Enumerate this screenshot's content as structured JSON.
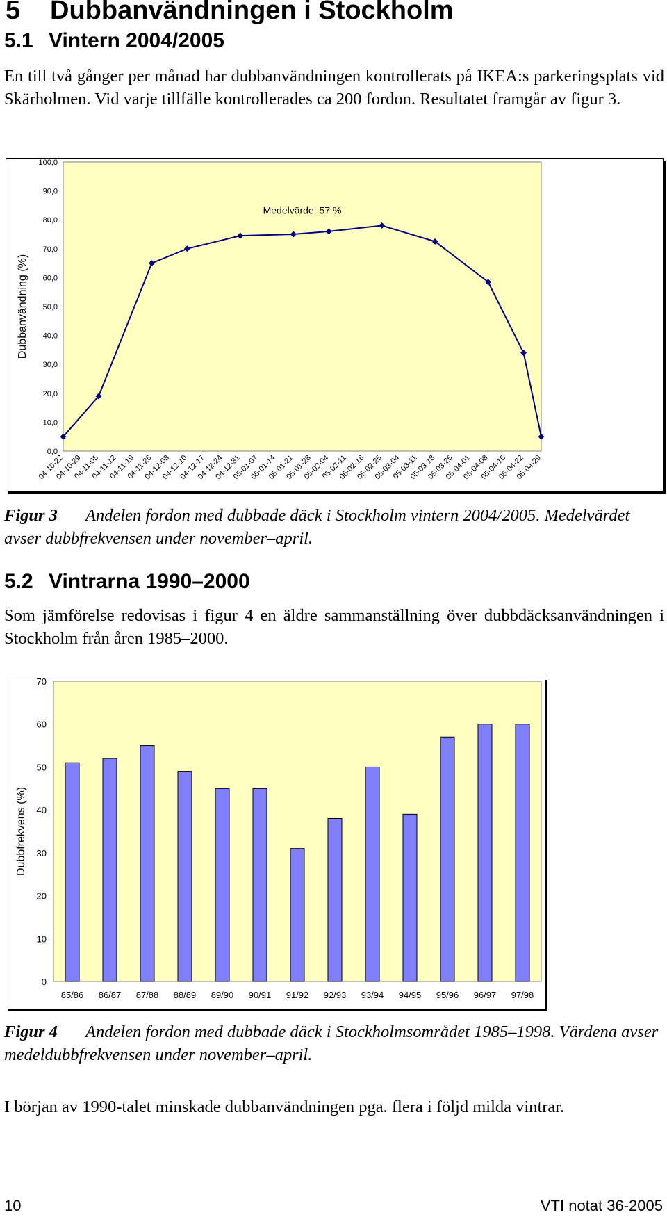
{
  "section": {
    "number": "5",
    "title": "Dubbanvändningen i Stockholm"
  },
  "subsection1": {
    "number": "5.1",
    "title": "Vintern 2004/2005"
  },
  "para1": "En till två gånger per månad har dubbanvändningen kontrollerats på IKEA:s parkeringsplats vid Skärholmen. Vid varje tillfälle kontrollerades ca 200 fordon. Resultatet framgår av figur 3.",
  "figure3": {
    "label": "Figur 3",
    "caption": "Andelen fordon med dubbade däck i Stockholm vintern 2004/2005. Medelvärdet avser dubbfrekvensen under november–april."
  },
  "subsection2": {
    "number": "5.2",
    "title": "Vintrarna 1990–2000"
  },
  "para2": "Som jämförelse redovisas i figur 4 en äldre sammanställning över dubbdäcksanvändningen i Stockholm från åren 1985–2000.",
  "figure4": {
    "label": "Figur 4",
    "caption": "Andelen fordon med dubbade däck i Stockholmsområdet 1985–1998. Värdena avser medeldubbfrekvensen under november–april."
  },
  "para3": "I början av 1990-talet minskade dubbanvändningen pga. flera i följd milda vintrar.",
  "footer": {
    "page": "10",
    "report": "VTI notat 36-2005"
  },
  "chart_data": [
    {
      "type": "line",
      "title": "",
      "annotation": "Medelvärde: 57 %",
      "xlabel": "",
      "ylabel": "Dubbanvändning (%)",
      "ylim": [
        0,
        100
      ],
      "yticks": [
        "0,0",
        "10,0",
        "20,0",
        "30,0",
        "40,0",
        "50,0",
        "60,0",
        "70,0",
        "80,0",
        "90,0",
        "100,0"
      ],
      "categories": [
        "04-10-22",
        "04-10-29",
        "04-11-05",
        "04-11-12",
        "04-11-19",
        "04-11-26",
        "04-12-03",
        "04-12-10",
        "04-12-17",
        "04-12-24",
        "04-12-31",
        "05-01-07",
        "05-01-14",
        "05-01-21",
        "05-01-28",
        "05-02-04",
        "05-02-11",
        "05-02-18",
        "05-02-25",
        "05-03-04",
        "05-03-11",
        "05-03-18",
        "05-03-25",
        "05-04-01",
        "05-04-08",
        "05-04-15",
        "05-04-22",
        "05-04-29"
      ],
      "points": [
        {
          "x": "04-10-22",
          "y": 5
        },
        {
          "x": "04-11-05",
          "y": 19
        },
        {
          "x": "04-11-26",
          "y": 65
        },
        {
          "x": "04-12-10",
          "y": 70
        },
        {
          "x": "04-12-31",
          "y": 74.5
        },
        {
          "x": "05-01-21",
          "y": 75
        },
        {
          "x": "05-02-04",
          "y": 76
        },
        {
          "x": "05-02-25",
          "y": 78
        },
        {
          "x": "05-03-18",
          "y": 72.5
        },
        {
          "x": "05-04-08",
          "y": 58.5
        },
        {
          "x": "05-04-22",
          "y": 34
        },
        {
          "x": "05-04-29",
          "y": 5
        }
      ],
      "colors": {
        "line": "#000080",
        "background": "#ffffc0"
      },
      "grid": false,
      "legend": "none"
    },
    {
      "type": "bar",
      "title": "",
      "xlabel": "",
      "ylabel": "Dubbfrekvens (%)",
      "ylim": [
        0,
        70
      ],
      "yticks": [
        "0",
        "10",
        "20",
        "30",
        "40",
        "50",
        "60",
        "70"
      ],
      "categories": [
        "85/86",
        "86/87",
        "87/88",
        "88/89",
        "89/90",
        "90/91",
        "91/92",
        "92/93",
        "93/94",
        "94/95",
        "95/96",
        "96/97",
        "97/98"
      ],
      "values": [
        51,
        52,
        55,
        49,
        45,
        45,
        31,
        38,
        50,
        39,
        57,
        60,
        60
      ],
      "colors": {
        "bar": "#8080ff",
        "background": "#ffffc0"
      },
      "grid": false,
      "legend": "none"
    }
  ]
}
